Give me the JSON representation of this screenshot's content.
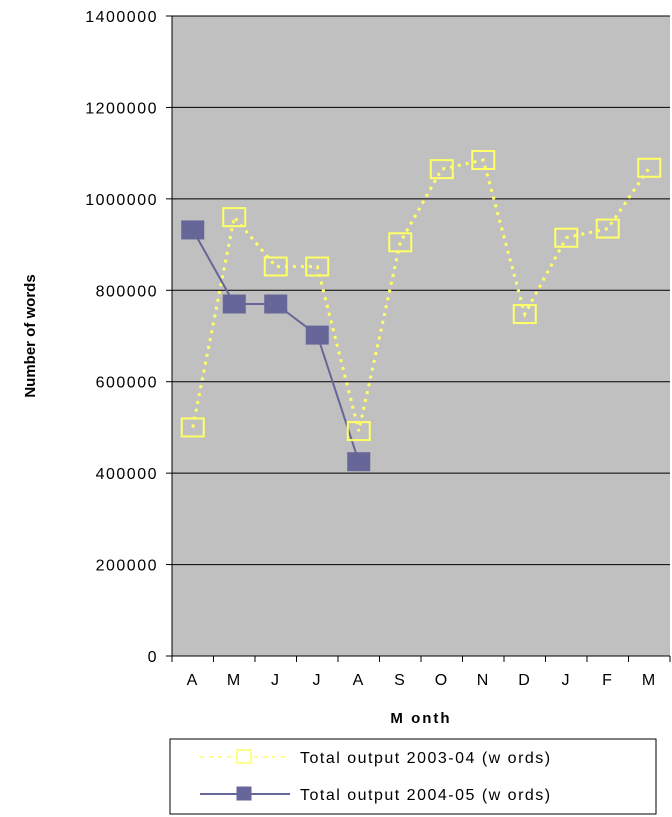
{
  "chart_data": {
    "type": "line",
    "categories": [
      "A",
      "M",
      "J",
      "J",
      "A",
      "S",
      "O",
      "N",
      "D",
      "J",
      "F",
      "M"
    ],
    "series": [
      {
        "name": "Total output 2003-04 (w ords)",
        "values": [
          500000,
          960000,
          852000,
          852000,
          492000,
          905000,
          1065000,
          1085000,
          748000,
          915000,
          935000,
          1068000
        ],
        "color": "#FFFF66",
        "line_style": "dotted",
        "marker": "hollow-square"
      },
      {
        "name": "Total output 2004-05 (w ords)",
        "values": [
          932000,
          770000,
          770000,
          702000,
          425000,
          null,
          null,
          null,
          null,
          null,
          null,
          null
        ],
        "color": "#666699",
        "line_style": "solid",
        "marker": "filled-square"
      }
    ],
    "y_ticks": [
      "0",
      "200000",
      "400000",
      "600000",
      "800000",
      "1000000",
      "1200000",
      "1400000"
    ],
    "xlabel": "M onth",
    "ylabel": "Number of words",
    "ylim": [
      0,
      1400000
    ],
    "grid": true,
    "plot_background": "#C0C0C0",
    "legend_position": "bottom"
  }
}
